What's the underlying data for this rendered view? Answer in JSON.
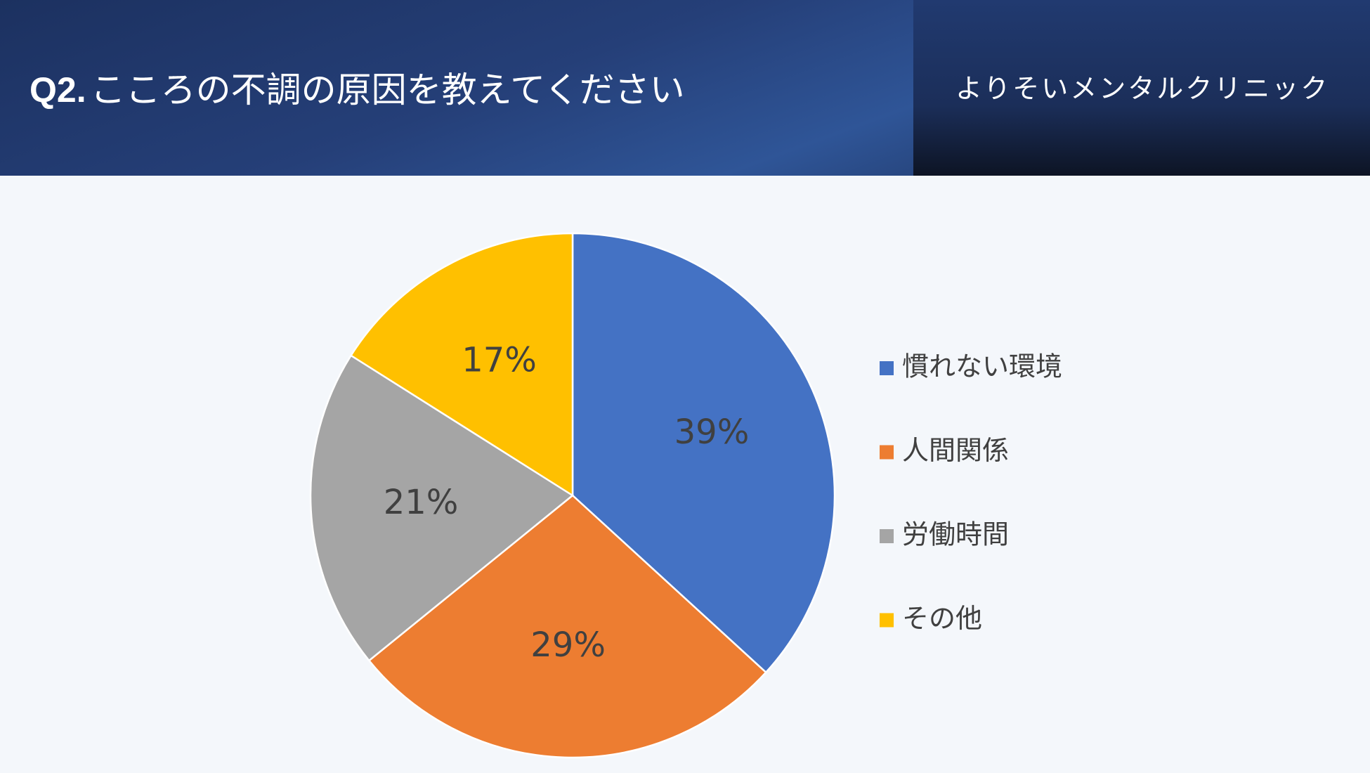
{
  "header": {
    "title_prefix": "Q2.",
    "title": "こころの不調の原因を教えてください",
    "organization": "よりそいメンタルクリニック"
  },
  "chart_data": {
    "type": "pie",
    "categories": [
      "慣れない環境",
      "人間関係",
      "労働時間",
      "その他"
    ],
    "values": [
      39,
      29,
      21,
      17
    ],
    "value_labels": [
      "39%",
      "29%",
      "21%",
      "17%"
    ],
    "colors": [
      "#4472c4",
      "#ed7d31",
      "#a5a5a5",
      "#ffc000"
    ],
    "legend": "right"
  }
}
